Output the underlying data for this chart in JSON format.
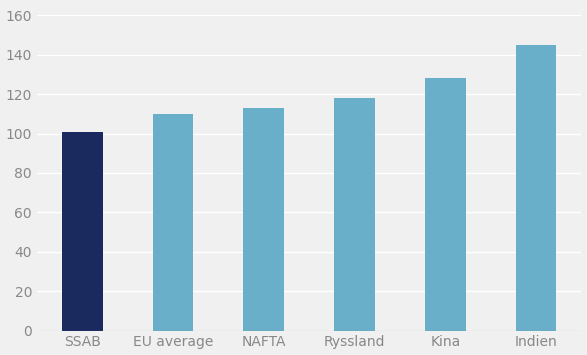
{
  "categories": [
    "SSAB",
    "EU average",
    "NAFTA",
    "Ryssland",
    "Kina",
    "Indien"
  ],
  "values": [
    101,
    110,
    113,
    118,
    128,
    145
  ],
  "bar_colors": [
    "#1b2a5e",
    "#6aafc9",
    "#6aafc9",
    "#6aafc9",
    "#6aafc9",
    "#6aafc9"
  ],
  "ylim": [
    0,
    165
  ],
  "yticks": [
    0,
    20,
    40,
    60,
    80,
    100,
    120,
    140,
    160
  ],
  "background_color": "#f0f0f0",
  "plot_bg_color": "#f0f0f0",
  "grid_color": "#ffffff",
  "tick_color": "#888888",
  "tick_fontsize": 10,
  "label_fontsize": 10,
  "bar_width": 0.45
}
